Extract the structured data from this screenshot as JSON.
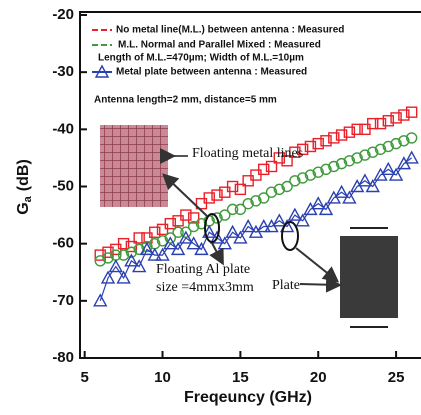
{
  "chart_data": {
    "type": "scatter",
    "y_label": "G",
    "y_label_sub": "a",
    "y_label_unit": "(dB)",
    "x_label": "Freqeuncy (GHz)",
    "xlim": [
      4.7,
      26.6
    ],
    "ylim": [
      -80,
      -20
    ],
    "xticks": [
      5,
      10,
      15,
      20,
      25
    ],
    "yticks": [
      -20,
      -30,
      -40,
      -50,
      -60,
      -70,
      -80
    ],
    "x": [
      6,
      6.5,
      7,
      7.5,
      8,
      8.5,
      9,
      9.5,
      10,
      10.5,
      11,
      11.5,
      12,
      12.5,
      13,
      13.5,
      14,
      14.5,
      15,
      15.5,
      16,
      16.5,
      17,
      17.5,
      18,
      18.5,
      19,
      19.5,
      20,
      20.5,
      21,
      21.5,
      22,
      22.5,
      23,
      23.5,
      24,
      24.5,
      25,
      25.5,
      26
    ],
    "series": [
      {
        "name": "No metal line(M.L.) between antenna : Measured",
        "color": "#e8202a",
        "marker": "square",
        "connected": false,
        "values": [
          -62,
          -61.5,
          -61,
          -60,
          -60.5,
          -59,
          -59,
          -58,
          -57.5,
          -56.5,
          -56,
          -55,
          -55.5,
          -53,
          -52,
          -51.5,
          -51,
          -50,
          -50.5,
          -49,
          -48,
          -47,
          -46.5,
          -45,
          -45.5,
          -44,
          -43.5,
          -43,
          -42.5,
          -42,
          -41.5,
          -41,
          -40.5,
          -40,
          -40,
          -39,
          -39,
          -38.5,
          -38,
          -37.5,
          -37
        ]
      },
      {
        "name": "M.L. Normal and Parallel Mixed : Measured",
        "color": "#3f9a3a",
        "marker": "circle",
        "connected": false,
        "values": [
          -63,
          -62.5,
          -62,
          -62,
          -61.5,
          -61,
          -60.5,
          -60,
          -59.5,
          -59,
          -58,
          -58,
          -57,
          -56.5,
          -56,
          -55.5,
          -55,
          -54,
          -54,
          -53,
          -52.5,
          -52,
          -51,
          -50.5,
          -50,
          -49,
          -48.5,
          -48,
          -47.5,
          -47,
          -46.5,
          -46,
          -45.5,
          -45,
          -44.5,
          -44,
          -43.5,
          -43,
          -42.5,
          -42,
          -41.5
        ]
      },
      {
        "name": "Metal plate between antenna : Measured",
        "color": "#2a3fb0",
        "marker": "triangle",
        "connected": true,
        "values": [
          -70,
          -66,
          -64,
          -66,
          -63,
          -64,
          -61,
          -62,
          -62,
          -60,
          -61,
          -59,
          -60,
          -61,
          -58,
          -59,
          -60,
          -58,
          -59,
          -57,
          -58,
          -57,
          -57,
          -56,
          -57,
          -55,
          -56,
          -54,
          -53,
          -54,
          -52,
          -51,
          -52,
          -50,
          -49,
          -50,
          -48,
          -47,
          -48,
          -46,
          -45
        ]
      }
    ],
    "annotations": [
      "Length of M.L.=470µm; Width of M.L.=10µm",
      "Antenna length=2 mm, distance=5 mm",
      "Floating metal lines",
      "Floating Al plate",
      "size =4mmx3mm",
      "Plate"
    ]
  }
}
